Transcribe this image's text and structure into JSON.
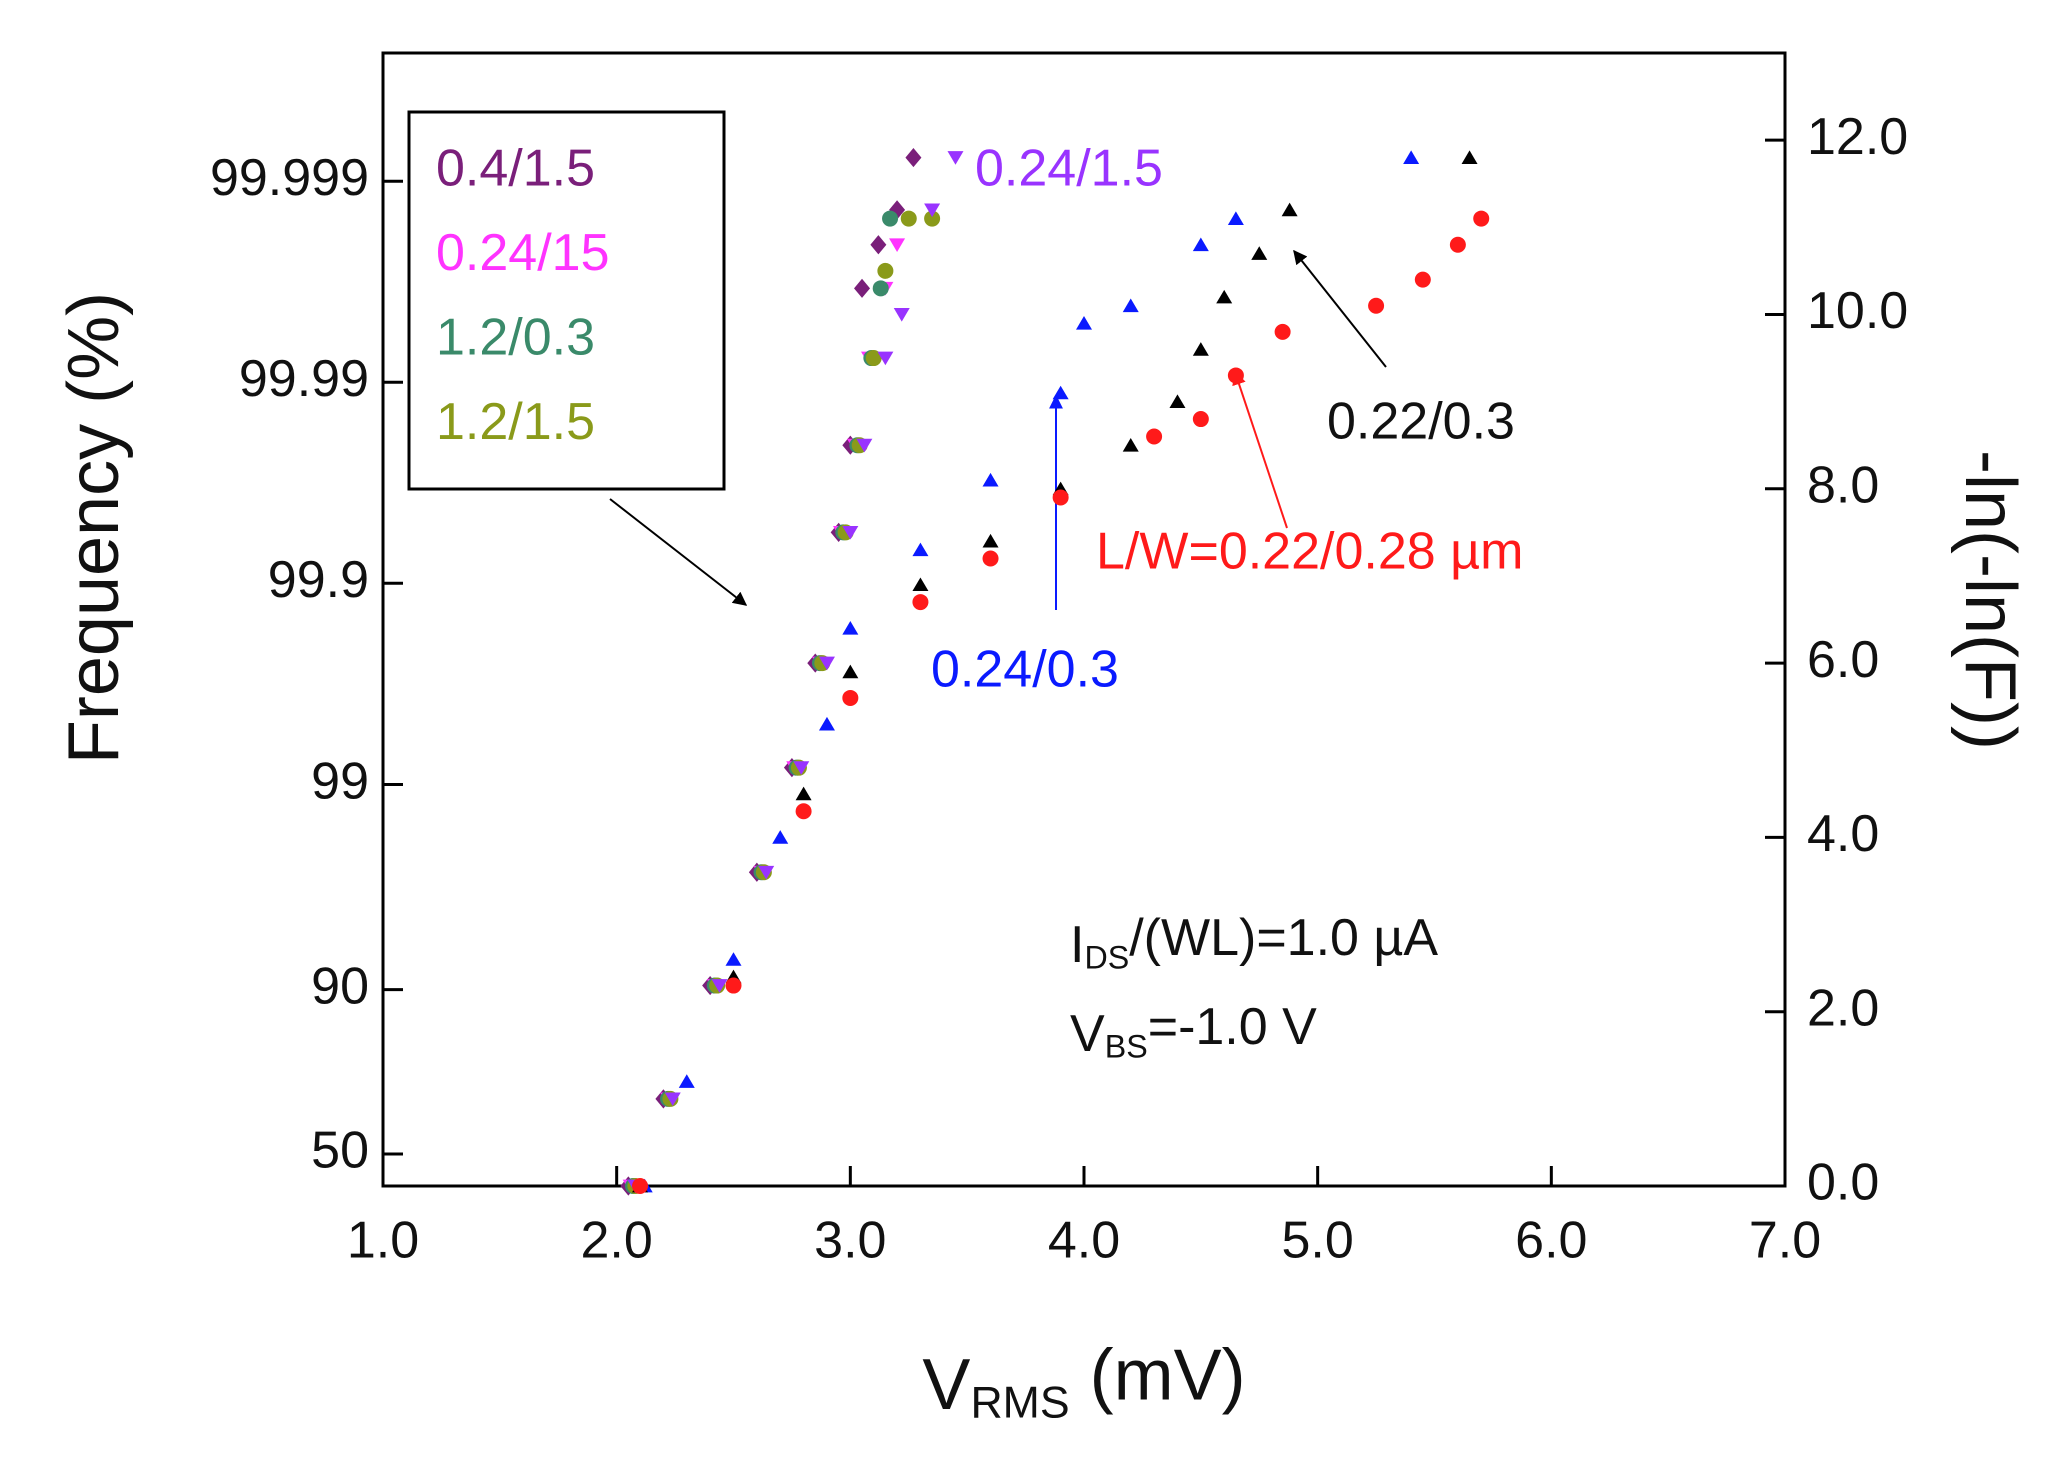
{
  "chart_data": {
    "type": "scatter",
    "xlabel": [
      "V",
      "RMS",
      " (mV)"
    ],
    "ylabel": "Frequency (%)",
    "y2label": "-ln(-ln(F))",
    "xlim": [
      1.0,
      7.0
    ],
    "xticks": [
      {
        "value": 1,
        "label": "1.0"
      },
      {
        "value": 2,
        "label": "2.0"
      },
      {
        "value": 3,
        "label": "3.0"
      },
      {
        "value": 4,
        "label": "4.0"
      },
      {
        "value": 5,
        "label": "5.0"
      },
      {
        "value": 6,
        "label": "6.0"
      },
      {
        "value": 7,
        "label": "7.0"
      }
    ],
    "yscale": "gumbel",
    "ylim": [
      36.788,
      99.99977
    ],
    "yticks": [
      50,
      90,
      99,
      99.9,
      99.99,
      99.999
    ],
    "y2lim": [
      0,
      13
    ],
    "y2ticks": [
      {
        "value": 0,
        "label": "0.0"
      },
      {
        "value": 2,
        "label": "2.0"
      },
      {
        "value": 4,
        "label": "4.0"
      },
      {
        "value": 6,
        "label": "6.0"
      },
      {
        "value": 8,
        "label": "8.0"
      },
      {
        "value": 10,
        "label": "10.0"
      },
      {
        "value": 12,
        "label": "12.0"
      }
    ],
    "annotation_lines": [
      [
        "I",
        "DS",
        "/(WL)=1.0 µA"
      ],
      [
        "V",
        "BS",
        "=-1.0 V"
      ]
    ],
    "series": [
      {
        "name": "0.4/1.5",
        "color": "#7a1f7a",
        "marker": "diamond",
        "axis": "y2",
        "x": [
          2.05,
          2.2,
          2.4,
          2.6,
          2.75,
          2.85,
          2.95,
          3.0,
          3.05,
          3.12,
          3.2,
          3.27
        ],
        "values": [
          0,
          1.0,
          2.3,
          3.6,
          4.8,
          6.0,
          7.5,
          8.5,
          10.3,
          10.8,
          11.2,
          11.8
        ]
      },
      {
        "name": "0.24/15",
        "color": "#ff33ff",
        "marker": "triangle-down",
        "axis": "y2",
        "x": [
          2.06,
          2.22,
          2.42,
          2.62,
          2.76,
          2.87,
          2.96,
          3.02,
          3.08,
          3.15,
          3.2
        ],
        "values": [
          0,
          1.0,
          2.3,
          3.6,
          4.8,
          6.0,
          7.5,
          8.5,
          9.5,
          10.3,
          10.8
        ]
      },
      {
        "name": "1.2/0.3",
        "color": "#3a8a6a",
        "marker": "circle",
        "axis": "y2",
        "x": [
          2.07,
          2.22,
          2.42,
          2.62,
          2.77,
          2.87,
          2.97,
          3.03,
          3.09,
          3.13,
          3.17
        ],
        "values": [
          0,
          1.0,
          2.3,
          3.6,
          4.8,
          6.0,
          7.5,
          8.5,
          9.5,
          10.3,
          11.1
        ]
      },
      {
        "name": "1.2/1.5",
        "color": "#8a9a1a",
        "marker": "circle",
        "axis": "y2",
        "x": [
          2.08,
          2.23,
          2.43,
          2.63,
          2.78,
          2.88,
          2.98,
          3.04,
          3.1,
          3.15,
          3.25,
          3.35
        ],
        "values": [
          0,
          1.0,
          2.3,
          3.6,
          4.8,
          6.0,
          7.5,
          8.5,
          9.5,
          10.5,
          11.1,
          11.1
        ]
      },
      {
        "name": "0.24/1.5",
        "color": "#9933ff",
        "marker": "triangle-down",
        "axis": "y2",
        "x": [
          2.08,
          2.24,
          2.44,
          2.64,
          2.79,
          2.9,
          3.0,
          3.06,
          3.15,
          3.22,
          3.35,
          3.45
        ],
        "values": [
          0,
          1.0,
          2.3,
          3.6,
          4.8,
          6.0,
          7.5,
          8.5,
          9.5,
          10.0,
          11.2,
          11.8
        ]
      },
      {
        "name": "0.24/0.3",
        "color": "#0a1aff",
        "marker": "triangle-up",
        "axis": "y2",
        "x": [
          2.12,
          2.3,
          2.5,
          2.7,
          2.9,
          3.0,
          3.3,
          3.6,
          3.9,
          4.0,
          4.2,
          4.5,
          4.65,
          5.4
        ],
        "values": [
          0,
          1.2,
          2.6,
          4.0,
          5.3,
          6.4,
          7.3,
          8.1,
          9.1,
          9.9,
          10.1,
          10.8,
          11.1,
          11.8
        ]
      },
      {
        "name": "0.22/0.3",
        "color": "#000000",
        "marker": "triangle-up",
        "axis": "y2",
        "x": [
          2.1,
          2.5,
          2.8,
          3.0,
          3.3,
          3.6,
          3.9,
          4.2,
          4.4,
          4.5,
          4.6,
          4.75,
          4.88,
          5.65
        ],
        "values": [
          0,
          2.4,
          4.5,
          5.9,
          6.9,
          7.4,
          8.0,
          8.5,
          9.0,
          9.6,
          10.2,
          10.7,
          11.2,
          11.8
        ]
      },
      {
        "name": "L/W=0.22/0.28 µm",
        "color": "#ff1a1a",
        "marker": "circle",
        "axis": "y2",
        "x": [
          2.1,
          2.5,
          2.8,
          3.0,
          3.3,
          3.6,
          3.9,
          4.3,
          4.5,
          4.65,
          4.85,
          5.25,
          5.45,
          5.6,
          5.7
        ],
        "values": [
          0,
          2.3,
          4.3,
          5.6,
          6.7,
          7.2,
          7.9,
          8.6,
          8.8,
          9.3,
          9.8,
          10.1,
          10.4,
          10.8,
          11.1
        ]
      }
    ]
  }
}
